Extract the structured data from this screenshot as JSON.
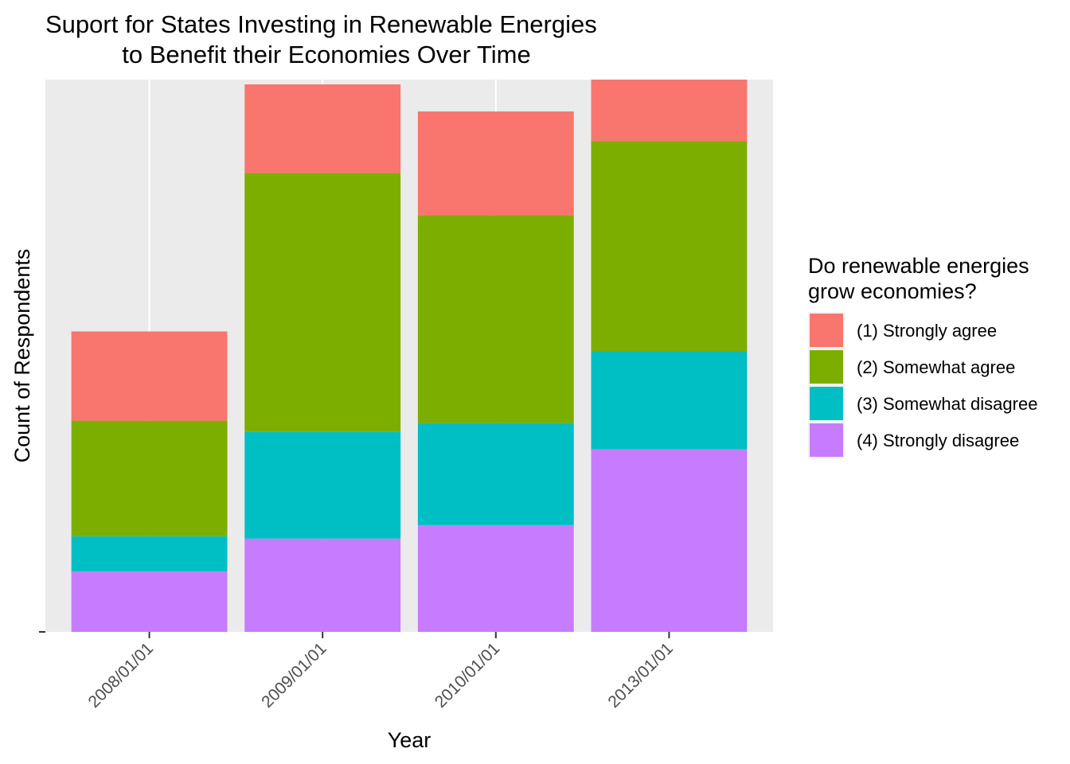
{
  "chart_data": {
    "type": "bar",
    "stacked": true,
    "title_lines": [
      "Suport for States Investing in Renewable Energies",
      "to Benefit their Economies Over Time"
    ],
    "xlabel": "Year",
    "ylabel": "Count of Respondents",
    "categories": [
      "2008/01/01",
      "2009/01/01",
      "2010/01/01",
      "2013/01/01"
    ],
    "series": [
      {
        "name": "(4) Strongly disagree",
        "color": "#C77CFF",
        "values": [
          76,
          117,
          134,
          229
        ]
      },
      {
        "name": "(3) Somewhat disagree",
        "color": "#00BFC4",
        "values": [
          44,
          134,
          128,
          123
        ]
      },
      {
        "name": "(2) Somewhat agree",
        "color": "#7CAE00",
        "values": [
          145,
          325,
          261,
          264
        ]
      },
      {
        "name": "(1) Strongly agree",
        "color": "#F8766D",
        "values": [
          112,
          111,
          130,
          77
        ]
      }
    ],
    "ylim": [
      0,
      693
    ],
    "y_tick_labels": [
      ""
    ],
    "grid": true,
    "panel_background": "#EBEBEB",
    "legend": {
      "title_lines": [
        "Do renewable energies",
        "grow economies?"
      ],
      "placement": "right",
      "order": [
        "(1) Strongly agree",
        "(2) Somewhat agree",
        "(3) Somewhat disagree",
        "(4) Strongly disagree"
      ]
    }
  }
}
